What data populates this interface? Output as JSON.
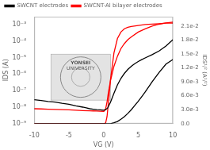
{
  "chart_data": {
    "type": "line",
    "log": "y",
    "grid": false,
    "legend": "upper left",
    "xlabel": "VG (V)",
    "ylabel": "IDS (A)",
    "y2label": "IDS¹/² (A¹/²)",
    "xlim": [
      -10,
      10
    ],
    "xticks": [
      -10,
      -5,
      0,
      5,
      10
    ],
    "ylim": [
      1e-09,
      0.003
    ],
    "yticks": [
      {
        "value": 1e-09,
        "label": "10⁻⁹"
      },
      {
        "value": 1e-08,
        "label": "10⁻⁸"
      },
      {
        "value": 1e-07,
        "label": "10⁻⁷"
      },
      {
        "value": 1e-06,
        "label": "10⁻⁶"
      },
      {
        "value": 1e-05,
        "label": "10⁻⁵"
      },
      {
        "value": 0.0001,
        "label": "10⁻⁴"
      },
      {
        "value": 0.001,
        "label": "10⁻³"
      }
    ],
    "y2lim": [
      0.0,
      0.023
    ],
    "y2ticks": [
      {
        "value": 0.0,
        "label": "0.0"
      },
      {
        "value": 0.003,
        "label": "3.0e-3"
      },
      {
        "value": 0.006,
        "label": "6.0e-3"
      },
      {
        "value": 0.009,
        "label": "9.0e-3"
      },
      {
        "value": 0.012,
        "label": "1.2e-2"
      },
      {
        "value": 0.015,
        "label": "1.5e-2"
      },
      {
        "value": 0.018,
        "label": "1.8e-2"
      },
      {
        "value": 0.021,
        "label": "2.1e-2"
      }
    ],
    "annotations": [
      "YONSEI",
      "UNIVERSITY"
    ],
    "series": [
      {
        "name": "SWCNT electrodes",
        "color": "black",
        "x": [
          -10,
          -9,
          -8,
          -7,
          -6,
          -5,
          -4,
          -3,
          -2.5,
          -2,
          -1.5,
          -1,
          -0.5,
          0,
          0.3,
          0.6,
          1,
          1.5,
          2,
          2.5,
          3,
          3.5,
          4,
          4.5,
          5,
          5.5,
          6,
          7,
          8,
          9,
          10
        ],
        "values": [
          2.8e-08,
          2.5e-08,
          2.2e-08,
          2e-08,
          1.7e-08,
          1.5e-08,
          1.2e-08,
          1e-08,
          9e-09,
          8e-09,
          7.5e-09,
          7e-09,
          6.8e-09,
          6.5e-09,
          7e-09,
          9e-09,
          2e-08,
          7e-08,
          2.2e-07,
          5.5e-07,
          1.1e-06,
          1.9e-06,
          3e-06,
          4.3e-06,
          5.8e-06,
          7.5e-06,
          9.5e-06,
          1.5e-05,
          2.5e-05,
          5e-05,
          0.00012
        ]
      },
      {
        "name": "SWCNT-Al bilayer electrodes",
        "color": "red",
        "x": [
          -10,
          -9,
          -8,
          -7,
          -6,
          -5,
          -4,
          -3,
          -2,
          -1.5,
          -1,
          -0.5,
          0,
          0.1,
          0.3,
          0.5,
          0.7,
          1.0,
          1.5,
          2,
          2.5,
          3,
          3.5,
          4,
          5,
          6,
          7,
          8,
          9,
          10
        ],
        "values": [
          8e-09,
          7.8e-09,
          7.5e-09,
          7.2e-09,
          7e-09,
          6.8e-09,
          6.5e-09,
          6.2e-09,
          6e-09,
          5.9e-09,
          5.8e-09,
          5.7e-09,
          5.6e-09,
          5.8e-09,
          8e-09,
          2e-08,
          8e-08,
          4e-07,
          3e-06,
          1.2e-05,
          3.5e-05,
          7e-05,
          0.00012,
          0.00018,
          0.00035,
          0.00055,
          0.0008,
          0.00105,
          0.00125,
          0.0014
        ]
      },
      {
        "color": "black",
        "axis": "y2",
        "x": [
          -10,
          -5,
          -2,
          -1,
          -0.5,
          0,
          0.5,
          1,
          1.5,
          2,
          2.5,
          3,
          3.5,
          4,
          4.5,
          5,
          5.5,
          6,
          7,
          8,
          9,
          10
        ],
        "values": [
          0,
          0,
          0,
          0,
          0,
          0,
          0,
          0,
          0.0002,
          0.00047,
          0.00095,
          0.0015,
          0.0022,
          0.003,
          0.0039,
          0.0048,
          0.0058,
          0.0068,
          0.009,
          0.011,
          0.0128,
          0.0138
        ]
      },
      {
        "color": "red",
        "axis": "y2",
        "x": [
          -10,
          -5,
          -1,
          -0.5,
          0,
          0.1,
          0.3,
          0.5,
          0.7,
          1.0,
          1.5,
          2,
          2.5,
          3,
          3.5,
          4,
          5,
          6,
          7,
          8,
          9,
          10
        ],
        "values": [
          0,
          0,
          0,
          0,
          0,
          0,
          0.00015,
          0.0015,
          0.0045,
          0.0095,
          0.0152,
          0.0183,
          0.0197,
          0.0204,
          0.0207,
          0.0209,
          0.0211,
          0.0213,
          0.0214,
          0.0215,
          0.0216,
          0.0216
        ]
      }
    ]
  }
}
